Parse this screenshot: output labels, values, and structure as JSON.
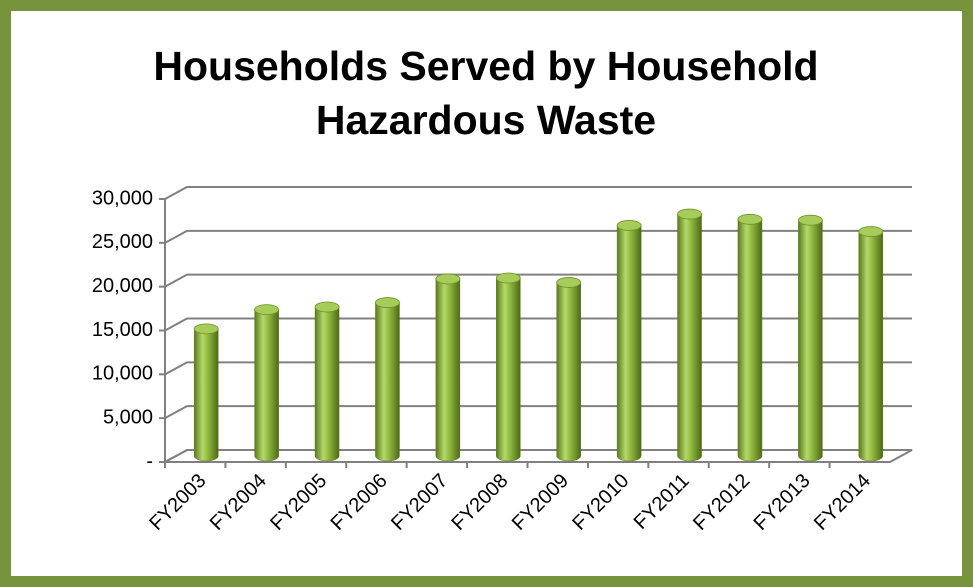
{
  "chart_data": {
    "type": "bar",
    "title": "Households Served by Household Hazardous Waste",
    "categories": [
      "FY2003",
      "FY2004",
      "FY2005",
      "FY2006",
      "FY2007",
      "FY2008",
      "FY2009",
      "FY2010",
      "FY2011",
      "FY2012",
      "FY2013",
      "FY2014"
    ],
    "values": [
      14500,
      16700,
      17000,
      17500,
      20200,
      20300,
      19800,
      26300,
      27600,
      27000,
      26900,
      25600
    ],
    "color": "#8cb33c",
    "ylim": [
      0,
      30000
    ],
    "yticks": [
      {
        "value": 0,
        "label": "-"
      },
      {
        "value": 5000,
        "label": "5,000"
      },
      {
        "value": 10000,
        "label": "10,000"
      },
      {
        "value": 15000,
        "label": "15,000"
      },
      {
        "value": 20000,
        "label": "20,000"
      },
      {
        "value": 25000,
        "label": "25,000"
      },
      {
        "value": 30000,
        "label": "30,000"
      }
    ],
    "grid": true
  }
}
